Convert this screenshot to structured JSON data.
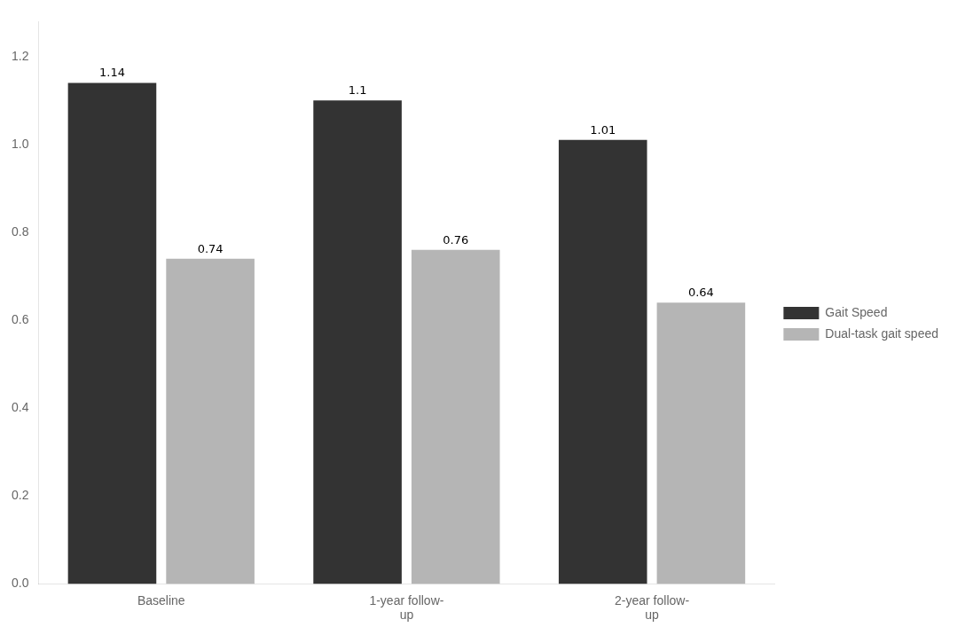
{
  "chart_data": {
    "type": "bar",
    "categories": [
      "Baseline",
      "1-year follow-\nup",
      "2-year follow-\nup"
    ],
    "series": [
      {
        "name": "Gait Speed",
        "color": "#333333",
        "values": [
          1.14,
          1.1,
          1.01
        ]
      },
      {
        "name": "Dual-task gait speed",
        "color": "#b5b5b5",
        "values": [
          0.74,
          0.76,
          0.64
        ]
      }
    ],
    "ylim": [
      0,
      1.28
    ],
    "yticks": [
      {
        "value": 0,
        "label": "0.0"
      },
      0.2,
      0.4,
      0.6,
      0.8,
      {
        "value": 1,
        "label": "1.0"
      },
      1.2
    ],
    "grid": false,
    "legend": "right",
    "data_labels": true
  }
}
